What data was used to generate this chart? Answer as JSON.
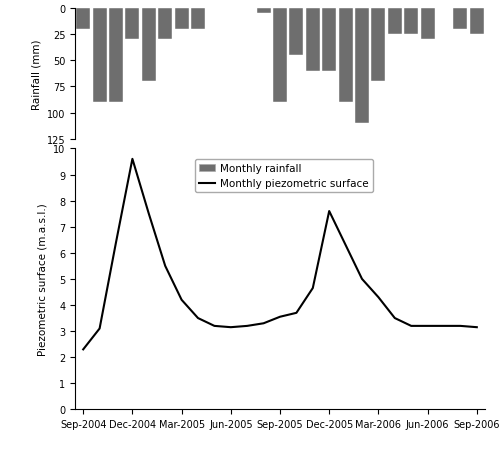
{
  "rainfall_months": [
    0,
    1,
    2,
    3,
    4,
    5,
    6,
    7,
    8,
    9,
    10,
    11,
    12,
    13,
    14,
    15,
    16,
    17,
    18,
    19,
    20,
    21,
    22,
    23,
    24
  ],
  "rainfall_values": [
    20,
    90,
    90,
    30,
    70,
    30,
    20,
    20,
    0,
    0,
    0,
    5,
    90,
    45,
    60,
    60,
    90,
    110,
    70,
    25,
    25,
    30,
    0,
    20,
    25
  ],
  "piezo_x": [
    0,
    1,
    2,
    3,
    4,
    5,
    6,
    7,
    8,
    9,
    10,
    11,
    12,
    13,
    14,
    15,
    16,
    17,
    18,
    19,
    20,
    21,
    22,
    23,
    24
  ],
  "piezo_y": [
    2.3,
    3.1,
    6.4,
    9.6,
    7.5,
    5.5,
    4.2,
    3.5,
    3.2,
    3.15,
    3.2,
    3.3,
    3.55,
    3.7,
    4.65,
    7.6,
    6.3,
    5.0,
    4.3,
    3.5,
    3.2,
    3.2,
    3.2,
    3.2,
    3.15
  ],
  "bar_color": "#6e6e6e",
  "line_color": "#000000",
  "background_color": "#ffffff",
  "ylabel_rain": "Rainfall (mm)",
  "ylabel_piezo": "Piezometric surface (m.a.s.l.)",
  "rain_ylim": [
    125,
    0
  ],
  "rain_yticks": [
    0,
    25,
    50,
    75,
    100,
    125
  ],
  "piezo_ylim": [
    0,
    10
  ],
  "piezo_yticks": [
    0,
    1,
    2,
    3,
    4,
    5,
    6,
    7,
    8,
    9,
    10
  ],
  "legend_labels": [
    "Monthly rainfall",
    "Monthly piezometric surface"
  ],
  "xtick_positions": [
    0,
    3,
    6,
    9,
    12,
    15,
    18,
    21,
    24
  ],
  "xtick_labels": [
    "Sep-2004",
    "Dec-2004",
    "Mar-2005",
    "Jun-2005",
    "Sep-2005",
    "Dec-2005",
    "Mar-2006",
    "Jun-2006",
    "Sep-2006"
  ]
}
